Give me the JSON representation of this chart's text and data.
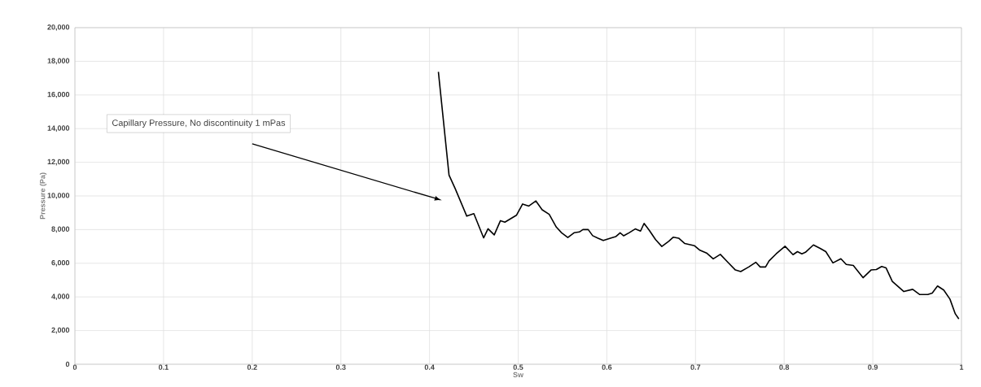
{
  "chart_data": {
    "type": "line",
    "xlabel": "Sw",
    "ylabel": "Pressure (Pa)",
    "color": "#000000",
    "grid": true,
    "marker": "none",
    "line_style": "solid",
    "xlim": [
      0,
      1
    ],
    "ylim": [
      0,
      20000
    ],
    "xticks": [
      0,
      0.1,
      0.2,
      0.3,
      0.4,
      0.5,
      0.6,
      0.7,
      0.8,
      0.9,
      1
    ],
    "yticks": [
      0,
      {
        "value": 2000,
        "label": "2,000"
      },
      {
        "value": 4000,
        "label": "4,000"
      },
      {
        "value": 6000,
        "label": "6,000"
      },
      {
        "value": 8000,
        "label": "8,000"
      },
      {
        "value": 10000,
        "label": "10,000"
      },
      {
        "value": 12000,
        "label": "12,000"
      },
      {
        "value": 14000,
        "label": "14,000"
      },
      {
        "value": 16000,
        "label": "16,000"
      },
      {
        "value": 18000,
        "label": "18,000"
      },
      {
        "value": 20000,
        "label": "20,000"
      }
    ],
    "annotations": [
      "Capillary Pressure, No discontinuity 1 mPas"
    ],
    "x": [
      0.41,
      0.422,
      0.429,
      0.442,
      0.45,
      0.461,
      0.466,
      0.473,
      0.48,
      0.485,
      0.498,
      0.505,
      0.512,
      0.52,
      0.527,
      0.535,
      0.543,
      0.549,
      0.556,
      0.563,
      0.569,
      0.573,
      0.579,
      0.584,
      0.59,
      0.596,
      0.604,
      0.61,
      0.615,
      0.619,
      0.625,
      0.632,
      0.638,
      0.642,
      0.648,
      0.655,
      0.662,
      0.67,
      0.675,
      0.681,
      0.688,
      0.694,
      0.699,
      0.705,
      0.713,
      0.72,
      0.728,
      0.736,
      0.745,
      0.751,
      0.76,
      0.768,
      0.773,
      0.779,
      0.783,
      0.791,
      0.801,
      0.81,
      0.815,
      0.82,
      0.824,
      0.833,
      0.841,
      0.847,
      0.855,
      0.864,
      0.87,
      0.878,
      0.889,
      0.898,
      0.904,
      0.91,
      0.915,
      0.922,
      0.935,
      0.945,
      0.953,
      0.962,
      0.967,
      0.973,
      0.98,
      0.987,
      0.993,
      0.997
    ],
    "values": [
      17370,
      11240,
      10430,
      8800,
      8950,
      7510,
      8050,
      7690,
      8530,
      8440,
      8850,
      9520,
      9400,
      9700,
      9180,
      8910,
      8150,
      7810,
      7530,
      7810,
      7860,
      8000,
      8000,
      7640,
      7490,
      7350,
      7490,
      7580,
      7810,
      7630,
      7810,
      8040,
      7910,
      8370,
      7950,
      7400,
      7000,
      7310,
      7550,
      7490,
      7170,
      7100,
      7040,
      6770,
      6590,
      6260,
      6530,
      6090,
      5600,
      5510,
      5780,
      6060,
      5780,
      5780,
      6140,
      6560,
      7010,
      6510,
      6690,
      6560,
      6650,
      7090,
      6870,
      6690,
      6020,
      6270,
      5930,
      5870,
      5140,
      5600,
      5630,
      5810,
      5720,
      4920,
      4320,
      4450,
      4140,
      4140,
      4230,
      4650,
      4410,
      3870,
      3000,
      2690
    ]
  }
}
